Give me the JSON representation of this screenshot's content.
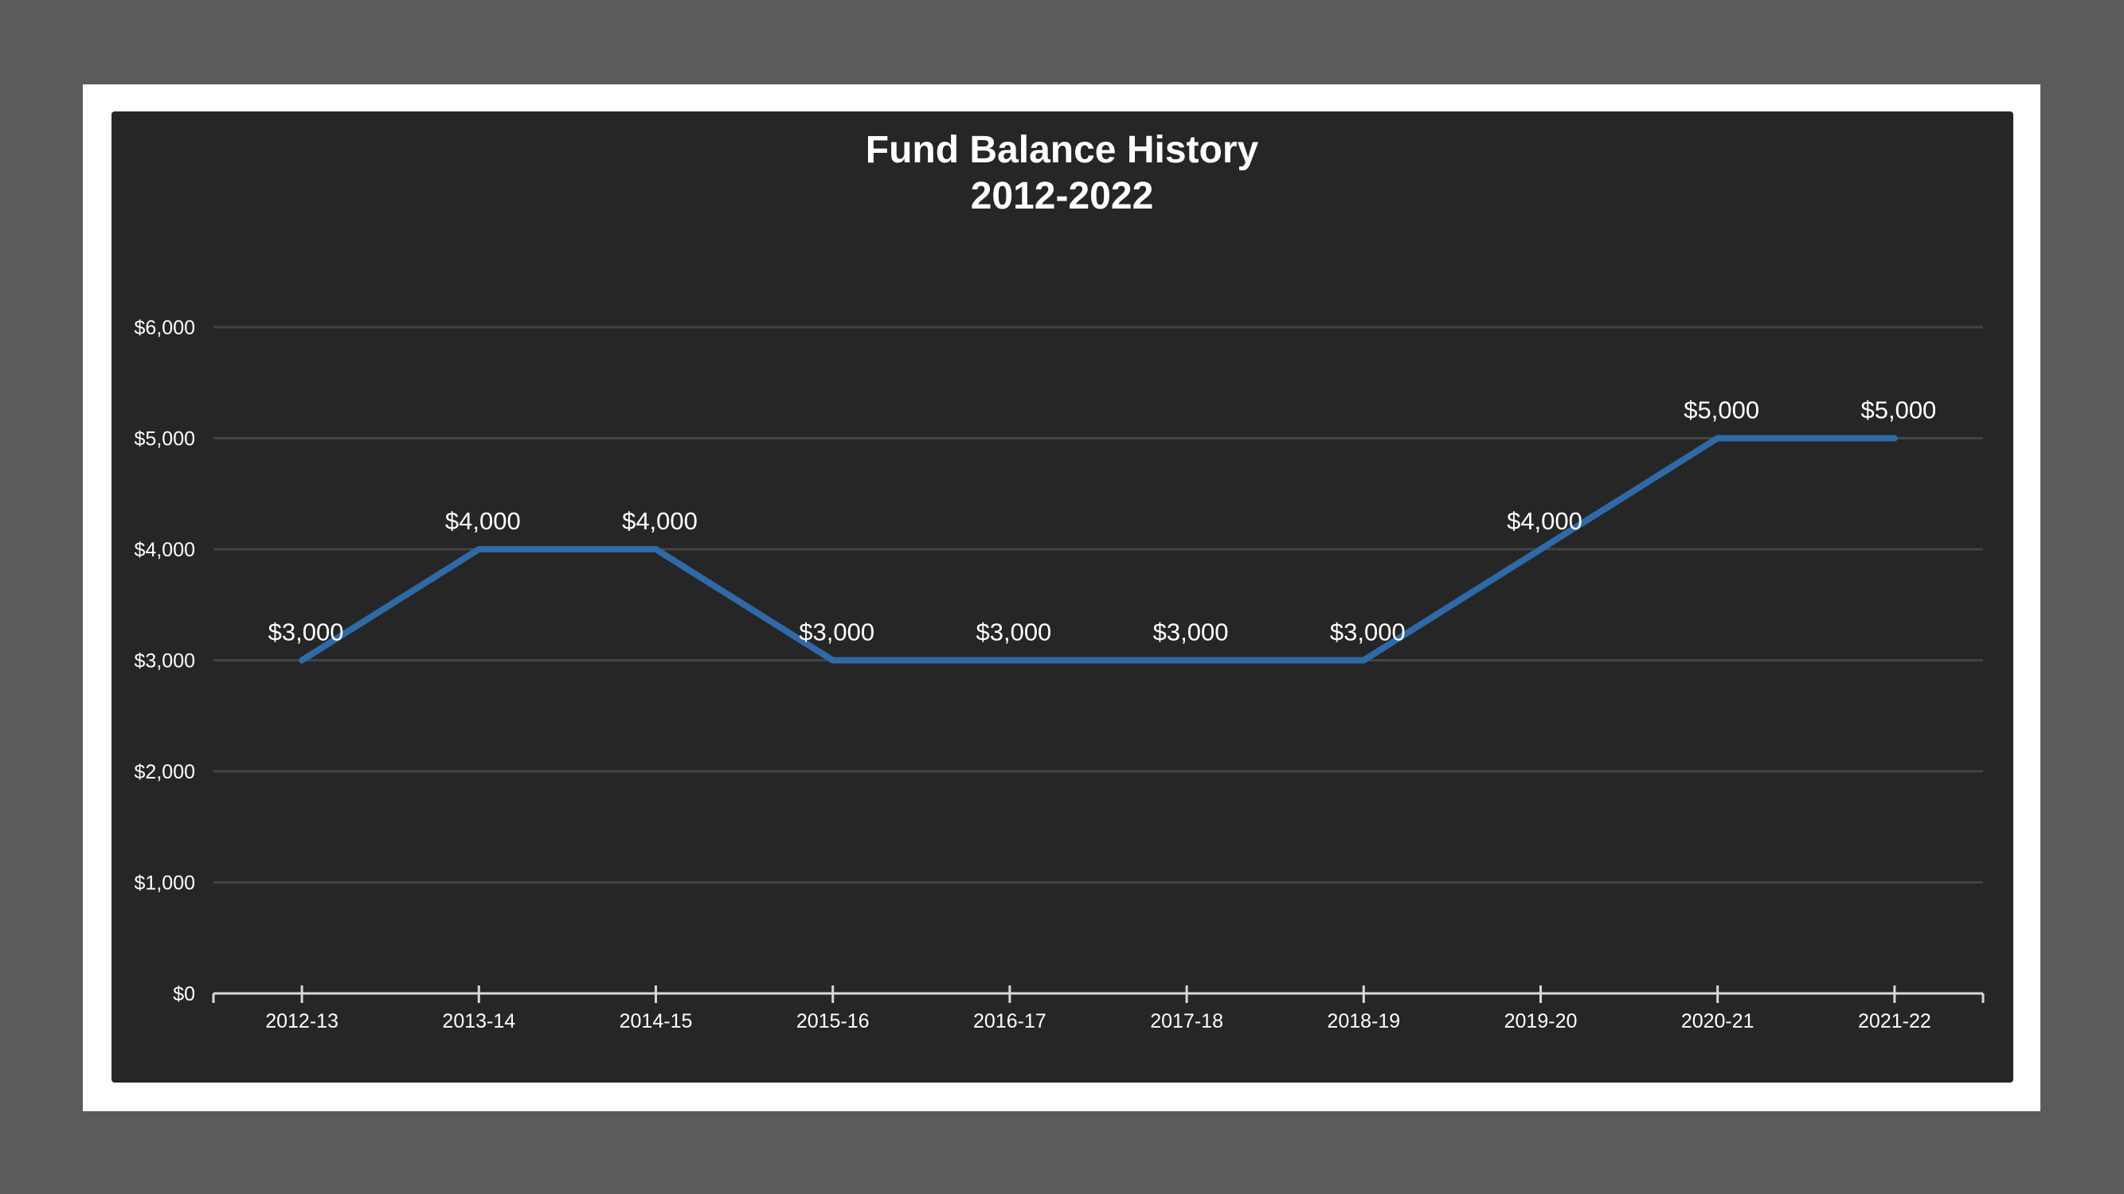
{
  "chart_data": {
    "type": "line",
    "title": "Fund Balance History",
    "subtitle": "2012-2022",
    "categories": [
      "2012-13",
      "2013-14",
      "2014-15",
      "2015-16",
      "2016-17",
      "2017-18",
      "2018-19",
      "2019-20",
      "2020-21",
      "2021-22"
    ],
    "series": [
      {
        "values": [
          3000,
          4000,
          4000,
          3000,
          3000,
          3000,
          3000,
          4000,
          5000,
          5000
        ],
        "data_labels": [
          "$3,000",
          "$4,000",
          "$4,000",
          "$3,000",
          "$3,000",
          "$3,000",
          "$3,000",
          "$4,000",
          "$5,000",
          "$5,000"
        ]
      }
    ],
    "ylim": [
      0,
      6000
    ],
    "yticks": [
      0,
      1000,
      2000,
      3000,
      4000,
      5000,
      6000
    ],
    "ytick_labels": [
      "$0",
      "$1,000",
      "$2,000",
      "$3,000",
      "$4,000",
      "$5,000",
      "$6,000"
    ],
    "grid": true,
    "legend": "none",
    "colors": {
      "line": "#2e6aa8",
      "grid": "#444444",
      "axis": "#d9d9d9",
      "background": "#262626",
      "page": "#5b5b5b",
      "frame": "#ffffff"
    }
  }
}
